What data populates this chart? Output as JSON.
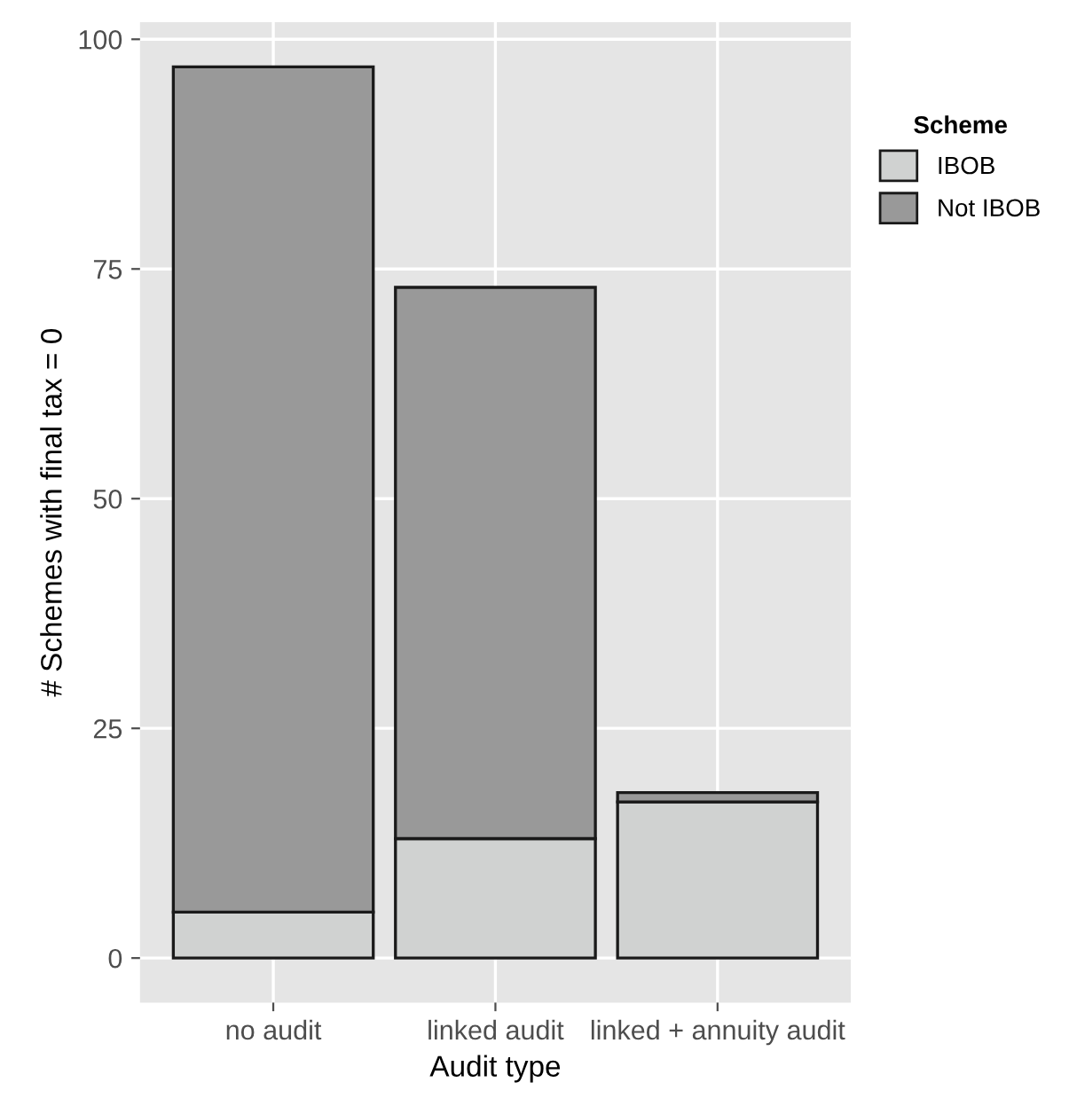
{
  "chart_data": {
    "type": "bar",
    "stacked": true,
    "xlabel": "Audit type",
    "ylabel": "# Schemes with final tax = 0",
    "legend_title": "Scheme",
    "legend": "right",
    "categories": [
      "no audit",
      "linked audit",
      "linked + annuity audit"
    ],
    "series": [
      {
        "name": "IBOB",
        "color": "#d0d2d1",
        "values": [
          5,
          13,
          17
        ]
      },
      {
        "name": "Not IBOB",
        "color": "#999999",
        "values": [
          92,
          60,
          1
        ]
      }
    ],
    "ylim": [
      -4.85,
      101.85
    ],
    "yticks": [
      0,
      25,
      50,
      75,
      100
    ],
    "grid": true
  }
}
